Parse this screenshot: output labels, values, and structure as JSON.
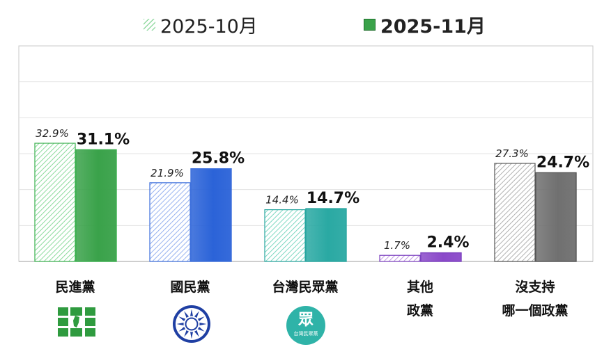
{
  "chart_data": {
    "type": "bar",
    "categories": [
      "民進黨",
      "國民黨",
      "台灣民眾黨",
      "其他 政黨",
      "沒支持 哪一個政黨"
    ],
    "category_lines": [
      [
        "民進黨"
      ],
      [
        "國民黨"
      ],
      [
        "台灣民眾黨"
      ],
      [
        "其他",
        "政黨"
      ],
      [
        "沒支持",
        "哪一個政黨"
      ]
    ],
    "series": [
      {
        "name": "2025-10月",
        "values": [
          32.9,
          21.9,
          14.4,
          1.7,
          27.3
        ],
        "labels": [
          "32.9%",
          "21.9%",
          "14.4%",
          "1.7%",
          "27.3%"
        ]
      },
      {
        "name": "2025-11月",
        "values": [
          31.1,
          25.8,
          14.7,
          2.4,
          24.7
        ],
        "labels": [
          "31.1%",
          "25.8%",
          "14.7%",
          "2.4%",
          "24.7%"
        ]
      }
    ],
    "ylim": [
      0,
      60
    ],
    "grid": true,
    "legend_position": "top-center",
    "colors": {
      "dpp": "#3aa24a",
      "kmt": "#2b63d8",
      "tpp": "#2aa9a3",
      "other": "#8a49c9",
      "none": "#707070"
    }
  },
  "logos": {
    "tpp_logo_text": "眾",
    "tpp_logo_subtext": "台灣民眾黨"
  }
}
